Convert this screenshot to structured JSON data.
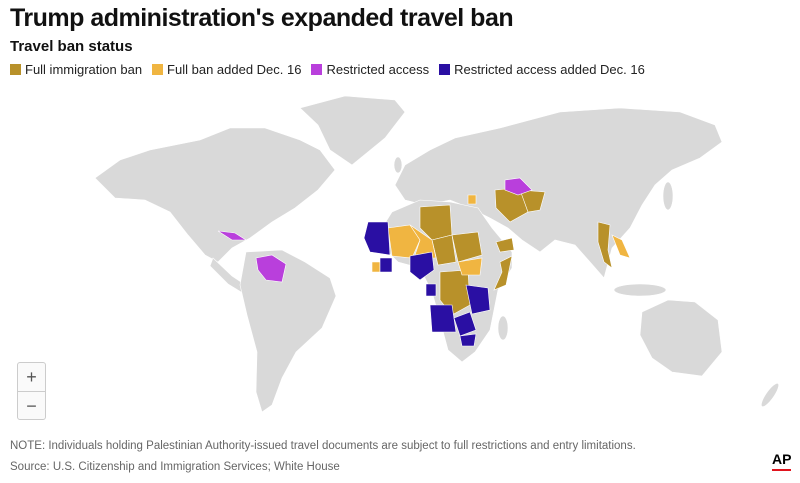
{
  "header": {
    "title": "Trump administration's expanded travel ban",
    "subtitle": "Travel ban status"
  },
  "legend": [
    {
      "label": "Full immigration ban",
      "color": "#b8912a"
    },
    {
      "label": "Full ban added Dec. 16",
      "color": "#f0b541"
    },
    {
      "label": "Restricted access",
      "color": "#b93fdc"
    },
    {
      "label": "Restricted access added Dec. 16",
      "color": "#2a0fa3"
    }
  ],
  "map": {
    "base_color": "#d9d9d9",
    "zoom_in_label": "+",
    "zoom_out_label": "−"
  },
  "footer": {
    "note": "NOTE: Individuals holding Palestinian Authority-issued travel documents are subject to full restrictions and entry limitations.",
    "source": "Source: U.S. Citizenship and Immigration Services; White House",
    "logo": "AP"
  }
}
